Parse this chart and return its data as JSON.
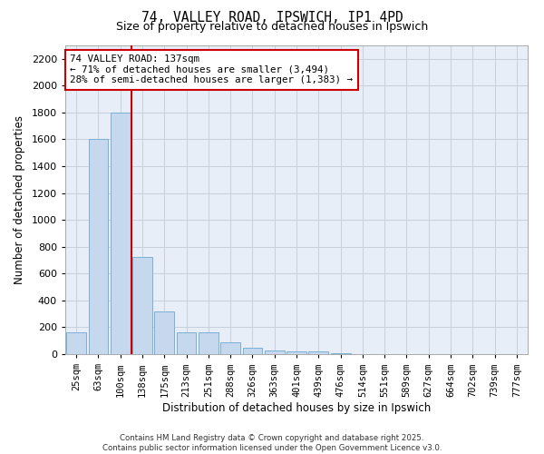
{
  "title_line1": "74, VALLEY ROAD, IPSWICH, IP1 4PD",
  "title_line2": "Size of property relative to detached houses in Ipswich",
  "xlabel": "Distribution of detached houses by size in Ipswich",
  "ylabel": "Number of detached properties",
  "categories": [
    "25sqm",
    "63sqm",
    "100sqm",
    "138sqm",
    "175sqm",
    "213sqm",
    "251sqm",
    "288sqm",
    "326sqm",
    "363sqm",
    "401sqm",
    "439sqm",
    "476sqm",
    "514sqm",
    "551sqm",
    "589sqm",
    "627sqm",
    "664sqm",
    "702sqm",
    "739sqm",
    "777sqm"
  ],
  "values": [
    160,
    1600,
    1800,
    725,
    320,
    160,
    160,
    85,
    50,
    30,
    20,
    20,
    5,
    0,
    0,
    0,
    0,
    0,
    0,
    0,
    0
  ],
  "bar_color": "#c5d8ed",
  "bar_edge_color": "#7aafd4",
  "grid_color": "#c8d0dc",
  "bg_color": "#e8eef7",
  "vline_color": "#cc0000",
  "annotation_text": "74 VALLEY ROAD: 137sqm\n← 71% of detached houses are smaller (3,494)\n28% of semi-detached houses are larger (1,383) →",
  "annotation_box_color": "#cc0000",
  "footnote": "Contains HM Land Registry data © Crown copyright and database right 2025.\nContains public sector information licensed under the Open Government Licence v3.0.",
  "ylim": [
    0,
    2300
  ],
  "yticks": [
    0,
    200,
    400,
    600,
    800,
    1000,
    1200,
    1400,
    1600,
    1800,
    2000,
    2200
  ]
}
